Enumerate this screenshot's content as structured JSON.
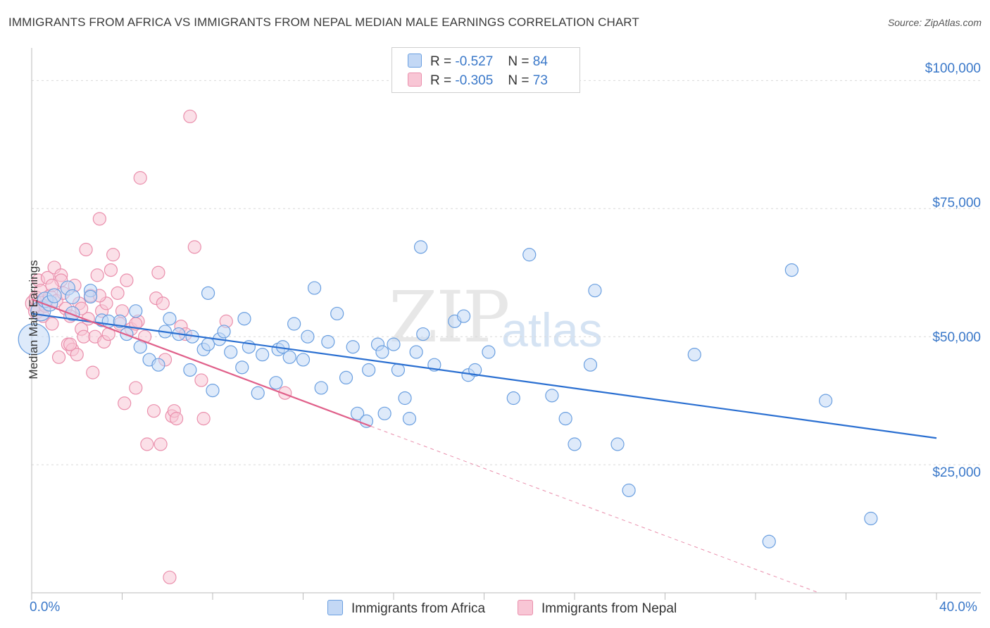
{
  "title": "IMMIGRANTS FROM AFRICA VS IMMIGRANTS FROM NEPAL MEDIAN MALE EARNINGS CORRELATION CHART",
  "source": "Source: ZipAtlas.com",
  "watermark": {
    "zip": "ZIP",
    "atlas": "atlas"
  },
  "legend": {
    "africa": {
      "r_label": "R =",
      "r_value": "-0.527",
      "n_label": "N =",
      "n_value": "84"
    },
    "nepal": {
      "r_label": "R =",
      "r_value": "-0.305",
      "n_label": "N =",
      "n_value": "73"
    }
  },
  "bottom_legend": {
    "africa": "Immigrants from Africa",
    "nepal": "Immigrants from Nepal"
  },
  "colors": {
    "africa_fill": "#c3d8f5",
    "africa_stroke": "#6a9fe0",
    "africa_line": "#2a6fd1",
    "nepal_fill": "#f8c6d5",
    "nepal_stroke": "#ea8fac",
    "nepal_line": "#e0608a"
  },
  "chart_data": {
    "type": "scatter",
    "title": "IMMIGRANTS FROM AFRICA VS IMMIGRANTS FROM NEPAL MEDIAN MALE EARNINGS CORRELATION CHART",
    "xlabel": "",
    "ylabel": "Median Male Earnings",
    "xlim": [
      0,
      40
    ],
    "ylim": [
      0,
      105000
    ],
    "x_tick_labels": [
      "0.0%",
      "40.0%"
    ],
    "y_tick_labels": [
      "$100,000",
      "$75,000",
      "$50,000",
      "$25,000"
    ],
    "y_ticks": [
      100000,
      75000,
      50000,
      25000
    ],
    "series": [
      {
        "name": "Immigrants from Africa",
        "r": -0.527,
        "n": 84,
        "trend": {
          "x": [
            0,
            40
          ],
          "y": [
            54500,
            30200
          ]
        },
        "points": [
          {
            "x": 0.1,
            "y": 49500,
            "s": 22
          },
          {
            "x": 0.4,
            "y": 55000,
            "s": 14
          },
          {
            "x": 0.6,
            "y": 57200,
            "s": 11
          },
          {
            "x": 0.8,
            "y": 56500,
            "s": 11
          },
          {
            "x": 1.0,
            "y": 58000,
            "s": 10
          },
          {
            "x": 1.6,
            "y": 59500,
            "s": 10
          },
          {
            "x": 1.8,
            "y": 57800,
            "s": 10
          },
          {
            "x": 1.8,
            "y": 54500,
            "s": 10
          },
          {
            "x": 2.6,
            "y": 59000,
            "s": 9
          },
          {
            "x": 2.6,
            "y": 57800,
            "s": 9
          },
          {
            "x": 3.1,
            "y": 53200,
            "s": 9
          },
          {
            "x": 3.4,
            "y": 53000,
            "s": 9
          },
          {
            "x": 3.9,
            "y": 53000,
            "s": 9
          },
          {
            "x": 4.2,
            "y": 50500,
            "s": 9
          },
          {
            "x": 4.6,
            "y": 55000,
            "s": 9
          },
          {
            "x": 4.8,
            "y": 48000,
            "s": 9
          },
          {
            "x": 5.2,
            "y": 45500,
            "s": 9
          },
          {
            "x": 5.6,
            "y": 44500,
            "s": 9
          },
          {
            "x": 5.9,
            "y": 51000,
            "s": 9
          },
          {
            "x": 6.1,
            "y": 53500,
            "s": 9
          },
          {
            "x": 6.5,
            "y": 50500,
            "s": 9
          },
          {
            "x": 7.0,
            "y": 43500,
            "s": 9
          },
          {
            "x": 7.1,
            "y": 50000,
            "s": 9
          },
          {
            "x": 7.6,
            "y": 47500,
            "s": 9
          },
          {
            "x": 7.8,
            "y": 48500,
            "s": 9
          },
          {
            "x": 7.8,
            "y": 58500,
            "s": 9
          },
          {
            "x": 8.0,
            "y": 39500,
            "s": 9
          },
          {
            "x": 8.3,
            "y": 49500,
            "s": 9
          },
          {
            "x": 8.5,
            "y": 51000,
            "s": 9
          },
          {
            "x": 8.8,
            "y": 47000,
            "s": 9
          },
          {
            "x": 9.3,
            "y": 44000,
            "s": 9
          },
          {
            "x": 9.4,
            "y": 53500,
            "s": 9
          },
          {
            "x": 9.6,
            "y": 48000,
            "s": 9
          },
          {
            "x": 10.0,
            "y": 39000,
            "s": 9
          },
          {
            "x": 10.2,
            "y": 46500,
            "s": 9
          },
          {
            "x": 10.8,
            "y": 41000,
            "s": 9
          },
          {
            "x": 10.9,
            "y": 47500,
            "s": 9
          },
          {
            "x": 11.1,
            "y": 48000,
            "s": 9
          },
          {
            "x": 11.4,
            "y": 46000,
            "s": 9
          },
          {
            "x": 11.6,
            "y": 52500,
            "s": 9
          },
          {
            "x": 12.0,
            "y": 45500,
            "s": 9
          },
          {
            "x": 12.2,
            "y": 50000,
            "s": 9
          },
          {
            "x": 12.5,
            "y": 59500,
            "s": 9
          },
          {
            "x": 12.8,
            "y": 40000,
            "s": 9
          },
          {
            "x": 13.1,
            "y": 49000,
            "s": 9
          },
          {
            "x": 13.5,
            "y": 54500,
            "s": 9
          },
          {
            "x": 13.9,
            "y": 42000,
            "s": 9
          },
          {
            "x": 14.2,
            "y": 48000,
            "s": 9
          },
          {
            "x": 14.4,
            "y": 35000,
            "s": 9
          },
          {
            "x": 14.8,
            "y": 33500,
            "s": 9
          },
          {
            "x": 14.9,
            "y": 43500,
            "s": 9
          },
          {
            "x": 15.3,
            "y": 48500,
            "s": 9
          },
          {
            "x": 15.5,
            "y": 47000,
            "s": 9
          },
          {
            "x": 15.6,
            "y": 35000,
            "s": 9
          },
          {
            "x": 16.0,
            "y": 48500,
            "s": 9
          },
          {
            "x": 16.2,
            "y": 43500,
            "s": 9
          },
          {
            "x": 16.5,
            "y": 38000,
            "s": 9
          },
          {
            "x": 16.7,
            "y": 34000,
            "s": 9
          },
          {
            "x": 17.0,
            "y": 47000,
            "s": 9
          },
          {
            "x": 17.2,
            "y": 67500,
            "s": 9
          },
          {
            "x": 17.3,
            "y": 50500,
            "s": 9
          },
          {
            "x": 17.8,
            "y": 44500,
            "s": 9
          },
          {
            "x": 18.7,
            "y": 53000,
            "s": 9
          },
          {
            "x": 19.1,
            "y": 54000,
            "s": 9
          },
          {
            "x": 19.3,
            "y": 42500,
            "s": 9
          },
          {
            "x": 19.6,
            "y": 43500,
            "s": 9
          },
          {
            "x": 20.2,
            "y": 47000,
            "s": 9
          },
          {
            "x": 21.3,
            "y": 38000,
            "s": 9
          },
          {
            "x": 22.0,
            "y": 66000,
            "s": 9
          },
          {
            "x": 23.0,
            "y": 38500,
            "s": 9
          },
          {
            "x": 23.6,
            "y": 34000,
            "s": 9
          },
          {
            "x": 24.0,
            "y": 29000,
            "s": 9
          },
          {
            "x": 24.7,
            "y": 44500,
            "s": 9
          },
          {
            "x": 24.9,
            "y": 59000,
            "s": 9
          },
          {
            "x": 25.9,
            "y": 29000,
            "s": 9
          },
          {
            "x": 26.4,
            "y": 20000,
            "s": 9
          },
          {
            "x": 29.3,
            "y": 46500,
            "s": 9
          },
          {
            "x": 33.6,
            "y": 63000,
            "s": 9
          },
          {
            "x": 35.1,
            "y": 37500,
            "s": 9
          },
          {
            "x": 37.1,
            "y": 14500,
            "s": 9
          },
          {
            "x": 32.6,
            "y": 10000,
            "s": 9
          }
        ]
      },
      {
        "name": "Immigrants from Nepal",
        "r": -0.305,
        "n": 73,
        "trend": {
          "x": [
            0,
            15
          ],
          "y": [
            57300,
            32500
          ]
        },
        "trend_dashed": {
          "x": [
            15,
            34.8
          ],
          "y": [
            32500,
            0
          ]
        },
        "points": [
          {
            "x": 0.1,
            "y": 56500,
            "s": 12
          },
          {
            "x": 0.2,
            "y": 55000,
            "s": 11
          },
          {
            "x": 0.2,
            "y": 57500,
            "s": 10
          },
          {
            "x": 0.3,
            "y": 61000,
            "s": 9
          },
          {
            "x": 0.4,
            "y": 59000,
            "s": 9
          },
          {
            "x": 0.5,
            "y": 54000,
            "s": 9
          },
          {
            "x": 0.6,
            "y": 56000,
            "s": 9
          },
          {
            "x": 0.7,
            "y": 61500,
            "s": 9
          },
          {
            "x": 0.8,
            "y": 58000,
            "s": 9
          },
          {
            "x": 0.9,
            "y": 52500,
            "s": 9
          },
          {
            "x": 1.0,
            "y": 63500,
            "s": 9
          },
          {
            "x": 1.1,
            "y": 57000,
            "s": 9
          },
          {
            "x": 1.2,
            "y": 46000,
            "s": 9
          },
          {
            "x": 1.3,
            "y": 62000,
            "s": 9
          },
          {
            "x": 1.4,
            "y": 58500,
            "s": 9
          },
          {
            "x": 1.5,
            "y": 55500,
            "s": 9
          },
          {
            "x": 1.6,
            "y": 48500,
            "s": 9
          },
          {
            "x": 1.7,
            "y": 54000,
            "s": 9
          },
          {
            "x": 1.8,
            "y": 47500,
            "s": 9
          },
          {
            "x": 1.9,
            "y": 60000,
            "s": 9
          },
          {
            "x": 2.0,
            "y": 46500,
            "s": 9
          },
          {
            "x": 2.1,
            "y": 56500,
            "s": 9
          },
          {
            "x": 2.2,
            "y": 51500,
            "s": 9
          },
          {
            "x": 2.3,
            "y": 50000,
            "s": 9
          },
          {
            "x": 2.4,
            "y": 67000,
            "s": 9
          },
          {
            "x": 2.5,
            "y": 53500,
            "s": 9
          },
          {
            "x": 2.6,
            "y": 58000,
            "s": 9
          },
          {
            "x": 2.7,
            "y": 43000,
            "s": 9
          },
          {
            "x": 2.8,
            "y": 50000,
            "s": 9
          },
          {
            "x": 2.9,
            "y": 62000,
            "s": 9
          },
          {
            "x": 3.0,
            "y": 73000,
            "s": 9
          },
          {
            "x": 3.1,
            "y": 55000,
            "s": 9
          },
          {
            "x": 3.2,
            "y": 49000,
            "s": 9
          },
          {
            "x": 3.3,
            "y": 56500,
            "s": 9
          },
          {
            "x": 3.4,
            "y": 50500,
            "s": 9
          },
          {
            "x": 3.5,
            "y": 63000,
            "s": 9
          },
          {
            "x": 3.6,
            "y": 66000,
            "s": 9
          },
          {
            "x": 3.8,
            "y": 58500,
            "s": 9
          },
          {
            "x": 3.9,
            "y": 52500,
            "s": 9
          },
          {
            "x": 4.0,
            "y": 55000,
            "s": 9
          },
          {
            "x": 4.1,
            "y": 37000,
            "s": 9
          },
          {
            "x": 4.2,
            "y": 61000,
            "s": 9
          },
          {
            "x": 4.4,
            "y": 51500,
            "s": 9
          },
          {
            "x": 4.6,
            "y": 40000,
            "s": 9
          },
          {
            "x": 4.7,
            "y": 53000,
            "s": 9
          },
          {
            "x": 4.8,
            "y": 81000,
            "s": 9
          },
          {
            "x": 5.0,
            "y": 50000,
            "s": 9
          },
          {
            "x": 5.1,
            "y": 29000,
            "s": 9
          },
          {
            "x": 5.4,
            "y": 35500,
            "s": 9
          },
          {
            "x": 5.5,
            "y": 57500,
            "s": 9
          },
          {
            "x": 5.6,
            "y": 62500,
            "s": 9
          },
          {
            "x": 5.7,
            "y": 29000,
            "s": 9
          },
          {
            "x": 5.8,
            "y": 56500,
            "s": 9
          },
          {
            "x": 5.9,
            "y": 45500,
            "s": 9
          },
          {
            "x": 6.1,
            "y": 3000,
            "s": 9
          },
          {
            "x": 6.2,
            "y": 34500,
            "s": 9
          },
          {
            "x": 6.3,
            "y": 35500,
            "s": 9
          },
          {
            "x": 6.4,
            "y": 34000,
            "s": 9
          },
          {
            "x": 6.6,
            "y": 52000,
            "s": 9
          },
          {
            "x": 6.8,
            "y": 50500,
            "s": 9
          },
          {
            "x": 7.0,
            "y": 93000,
            "s": 9
          },
          {
            "x": 7.2,
            "y": 67500,
            "s": 9
          },
          {
            "x": 7.5,
            "y": 41500,
            "s": 9
          },
          {
            "x": 7.6,
            "y": 34000,
            "s": 9
          },
          {
            "x": 1.3,
            "y": 61000,
            "s": 9
          },
          {
            "x": 0.9,
            "y": 60000,
            "s": 9
          },
          {
            "x": 2.2,
            "y": 55500,
            "s": 9
          },
          {
            "x": 3.0,
            "y": 58000,
            "s": 9
          },
          {
            "x": 4.6,
            "y": 52500,
            "s": 9
          },
          {
            "x": 1.7,
            "y": 48500,
            "s": 9
          },
          {
            "x": 8.6,
            "y": 53000,
            "s": 9
          },
          {
            "x": 11.2,
            "y": 39000,
            "s": 9
          }
        ]
      }
    ]
  }
}
